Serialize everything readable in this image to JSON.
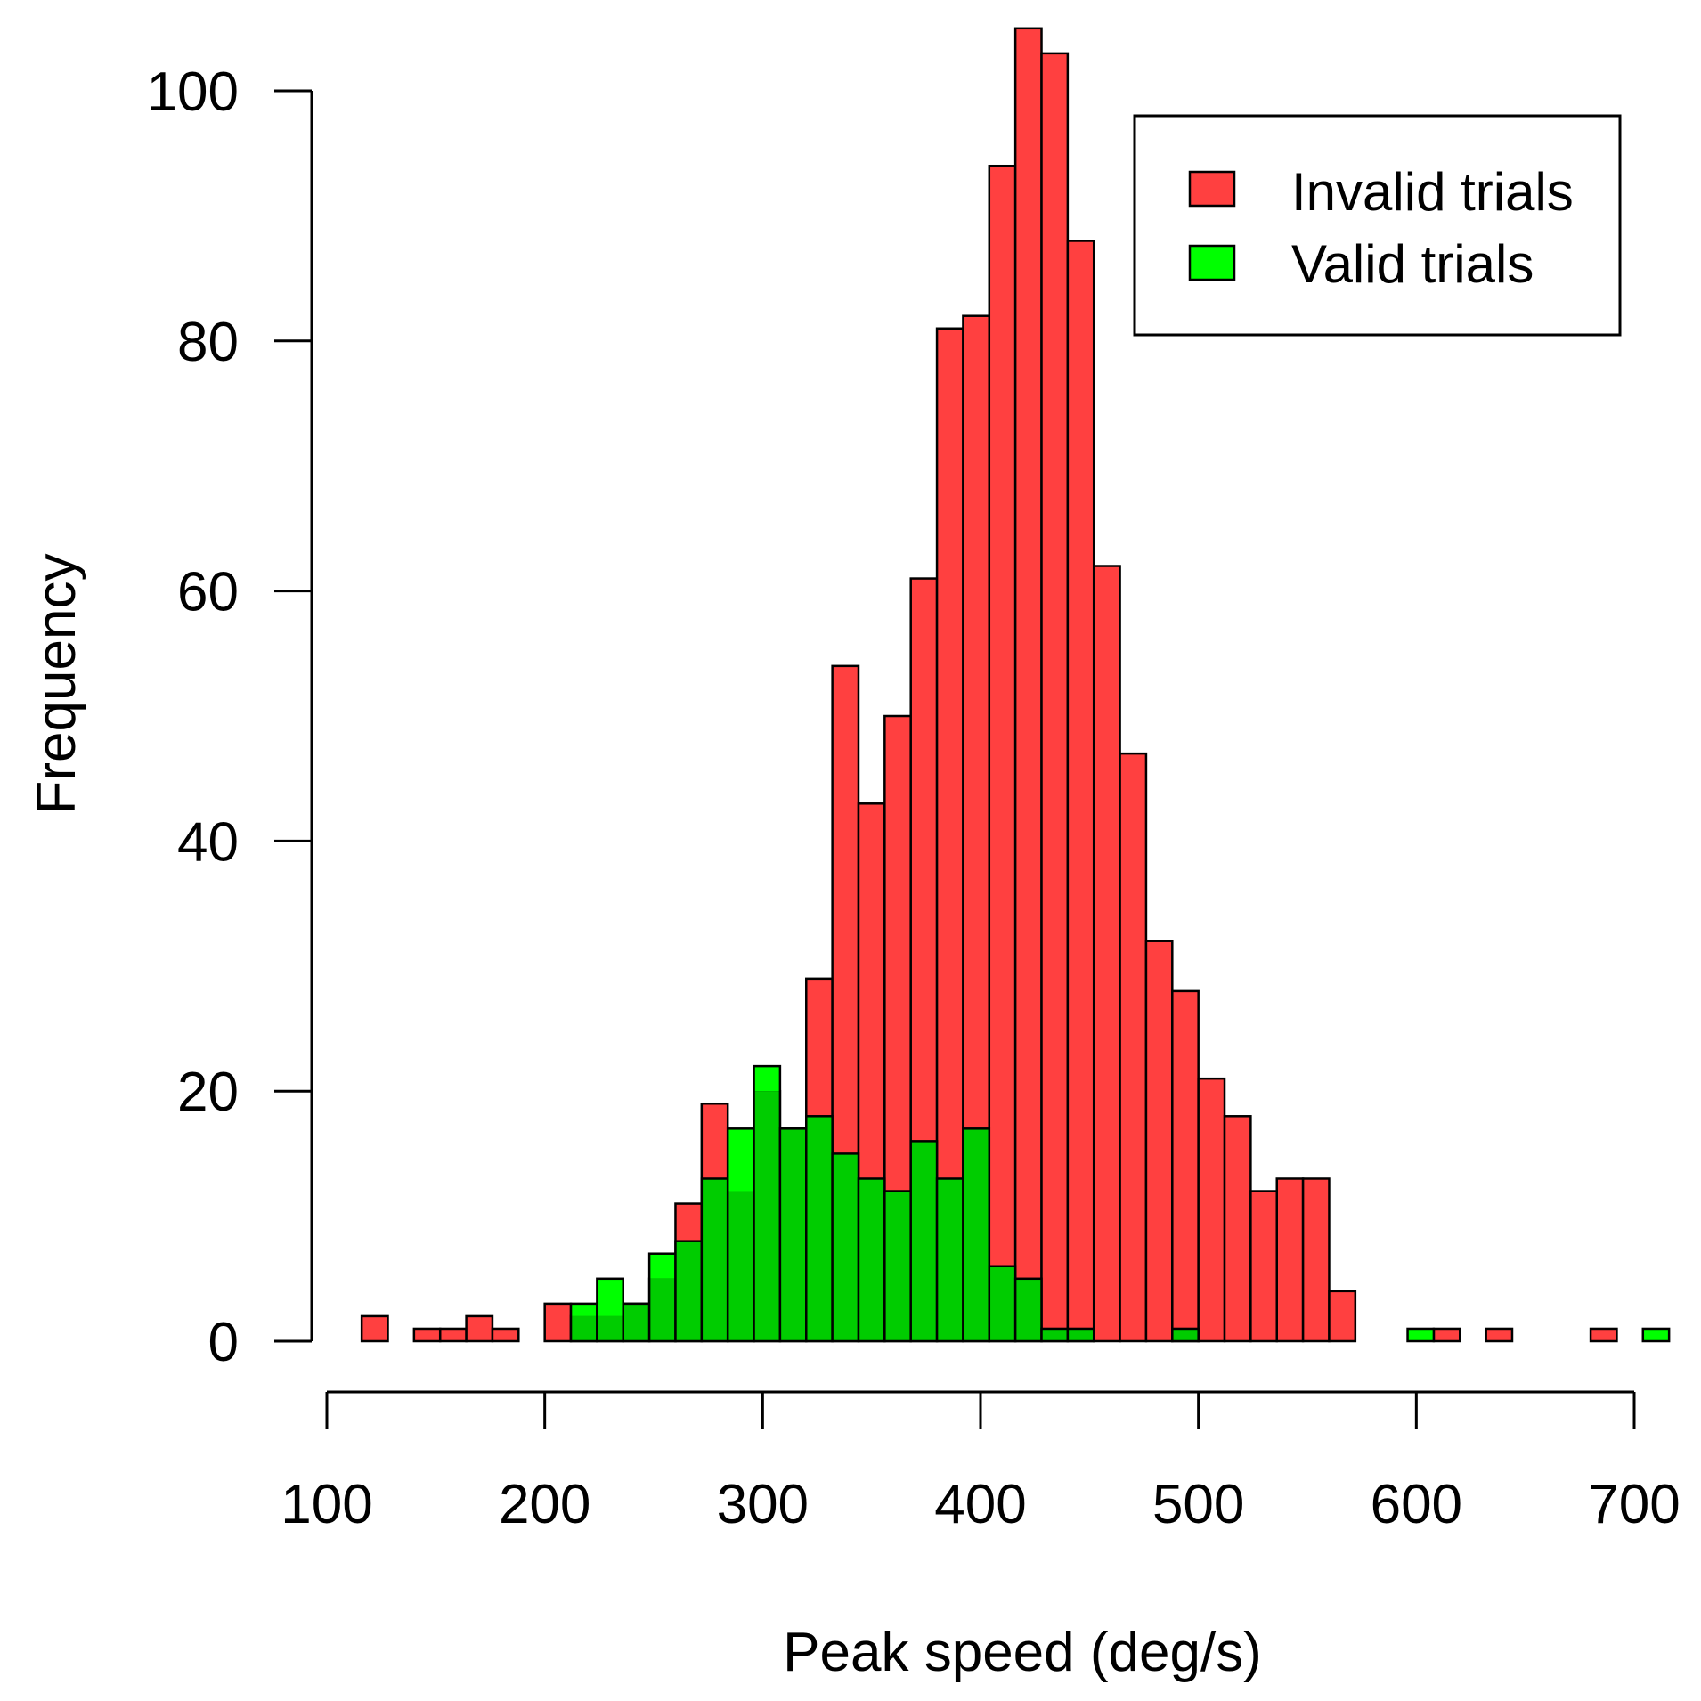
{
  "chart_data": {
    "type": "bar",
    "subtype": "overlaid-histogram",
    "title": "",
    "xlabel": "Peak speed (deg/s)",
    "ylabel": "Frequency",
    "xlim": [
      100,
      700
    ],
    "ylim": [
      0,
      100
    ],
    "bin_width": 12,
    "x_ticks": [
      100,
      200,
      300,
      400,
      500,
      600,
      700
    ],
    "x_tick_labels": [
      "100",
      "200",
      "300",
      "400",
      "500",
      "600",
      "700"
    ],
    "y_ticks": [
      0,
      20,
      40,
      60,
      80,
      100
    ],
    "y_tick_labels": [
      "0",
      "20",
      "40",
      "60",
      "80",
      "100"
    ],
    "legend": {
      "position": "top-right",
      "entries": [
        "Invalid trials",
        "Valid trials"
      ]
    },
    "series": [
      {
        "name": "Invalid trials",
        "color": "#ff4040",
        "bins": [
          {
            "x0": 116,
            "count": 2
          },
          {
            "x0": 140,
            "count": 1
          },
          {
            "x0": 152,
            "count": 1
          },
          {
            "x0": 164,
            "count": 2
          },
          {
            "x0": 176,
            "count": 1
          },
          {
            "x0": 200,
            "count": 3
          },
          {
            "x0": 212,
            "count": 2
          },
          {
            "x0": 224,
            "count": 2
          },
          {
            "x0": 236,
            "count": 3
          },
          {
            "x0": 248,
            "count": 5
          },
          {
            "x0": 260,
            "count": 11
          },
          {
            "x0": 272,
            "count": 19
          },
          {
            "x0": 284,
            "count": 12
          },
          {
            "x0": 296,
            "count": 20
          },
          {
            "x0": 308,
            "count": 17
          },
          {
            "x0": 320,
            "count": 29
          },
          {
            "x0": 332,
            "count": 54
          },
          {
            "x0": 344,
            "count": 43
          },
          {
            "x0": 356,
            "count": 50
          },
          {
            "x0": 368,
            "count": 61
          },
          {
            "x0": 380,
            "count": 81
          },
          {
            "x0": 392,
            "count": 82
          },
          {
            "x0": 404,
            "count": 94
          },
          {
            "x0": 416,
            "count": 105
          },
          {
            "x0": 428,
            "count": 103
          },
          {
            "x0": 440,
            "count": 88
          },
          {
            "x0": 452,
            "count": 62
          },
          {
            "x0": 464,
            "count": 47
          },
          {
            "x0": 476,
            "count": 32
          },
          {
            "x0": 488,
            "count": 28
          },
          {
            "x0": 500,
            "count": 21
          },
          {
            "x0": 512,
            "count": 18
          },
          {
            "x0": 524,
            "count": 12
          },
          {
            "x0": 536,
            "count": 13
          },
          {
            "x0": 548,
            "count": 13
          },
          {
            "x0": 560,
            "count": 4
          },
          {
            "x0": 608,
            "count": 1
          },
          {
            "x0": 632,
            "count": 1
          },
          {
            "x0": 680,
            "count": 1
          }
        ]
      },
      {
        "name": "Valid trials",
        "color": "#00ff00",
        "bins": [
          {
            "x0": 212,
            "count": 3
          },
          {
            "x0": 224,
            "count": 5
          },
          {
            "x0": 236,
            "count": 3
          },
          {
            "x0": 248,
            "count": 7
          },
          {
            "x0": 260,
            "count": 8
          },
          {
            "x0": 272,
            "count": 13
          },
          {
            "x0": 284,
            "count": 17
          },
          {
            "x0": 296,
            "count": 22
          },
          {
            "x0": 308,
            "count": 17
          },
          {
            "x0": 320,
            "count": 18
          },
          {
            "x0": 332,
            "count": 15
          },
          {
            "x0": 344,
            "count": 13
          },
          {
            "x0": 356,
            "count": 12
          },
          {
            "x0": 368,
            "count": 16
          },
          {
            "x0": 380,
            "count": 13
          },
          {
            "x0": 392,
            "count": 17
          },
          {
            "x0": 404,
            "count": 6
          },
          {
            "x0": 416,
            "count": 5
          },
          {
            "x0": 428,
            "count": 1
          },
          {
            "x0": 440,
            "count": 1
          },
          {
            "x0": 488,
            "count": 1
          },
          {
            "x0": 596,
            "count": 1
          },
          {
            "x0": 704,
            "count": 1
          }
        ]
      }
    ],
    "overlap_color": "#00cc00"
  }
}
